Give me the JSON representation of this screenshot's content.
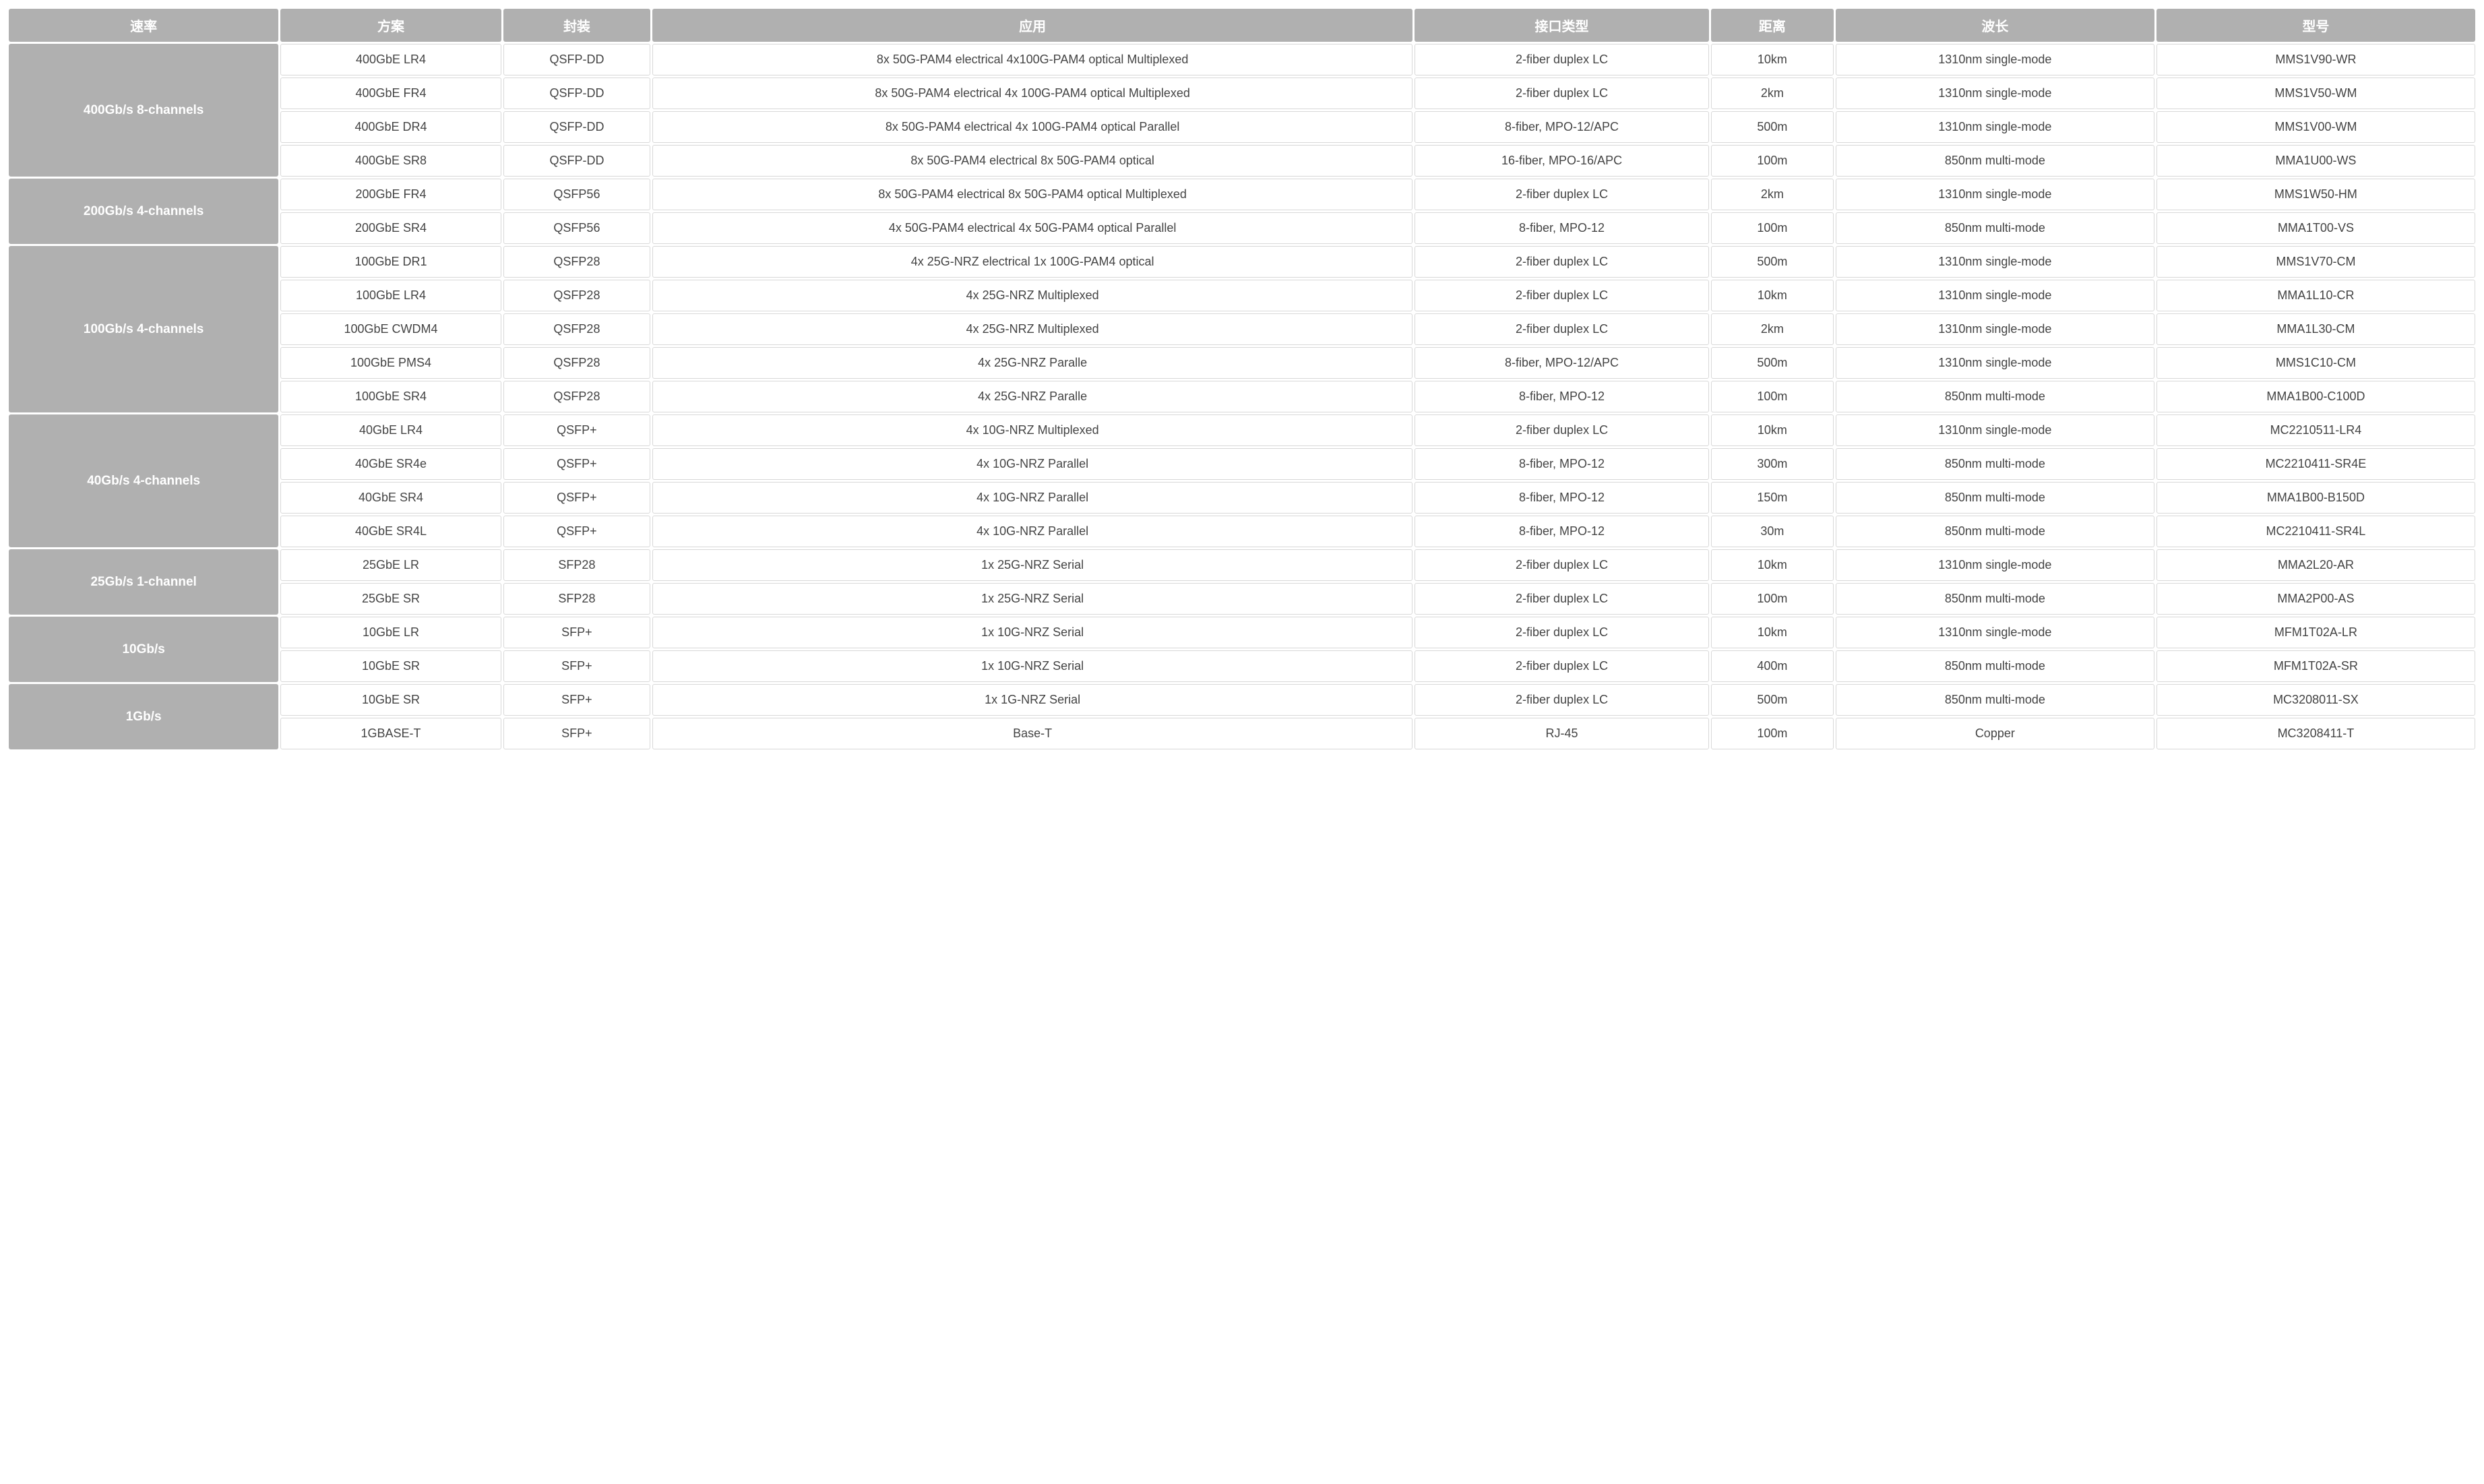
{
  "columns": [
    "速率",
    "方案",
    "封装",
    "应用",
    "接口类型",
    "距离",
    "波长",
    "型号"
  ],
  "groups": [
    {
      "rate": "400Gb/s 8-channels",
      "rows": [
        {
          "scheme": "400GbE LR4",
          "pkg": "QSFP-DD",
          "app": "8x 50G-PAM4 electrical 4x100G-PAM4 optical Multiplexed",
          "iface": "2-fiber duplex LC",
          "dist": "10km",
          "wave": "1310nm single-mode",
          "model": "MMS1V90-WR"
        },
        {
          "scheme": "400GbE FR4",
          "pkg": "QSFP-DD",
          "app": "8x 50G-PAM4 electrical 4x 100G-PAM4 optical Multiplexed",
          "iface": "2-fiber duplex LC",
          "dist": "2km",
          "wave": "1310nm single-mode",
          "model": "MMS1V50-WM"
        },
        {
          "scheme": "400GbE DR4",
          "pkg": "QSFP-DD",
          "app": "8x 50G-PAM4 electrical 4x 100G-PAM4 optical Parallel",
          "iface": "8-fiber, MPO-12/APC",
          "dist": "500m",
          "wave": "1310nm single-mode",
          "model": "MMS1V00-WM"
        },
        {
          "scheme": "400GbE SR8",
          "pkg": "QSFP-DD",
          "app": "8x 50G-PAM4 electrical 8x 50G-PAM4 optical",
          "iface": "16-fiber, MPO-16/APC",
          "dist": "100m",
          "wave": "850nm multi-mode",
          "model": "MMA1U00-WS"
        }
      ]
    },
    {
      "rate": "200Gb/s 4-channels",
      "rows": [
        {
          "scheme": "200GbE FR4",
          "pkg": "QSFP56",
          "app": "8x 50G-PAM4 electrical 8x 50G-PAM4 optical Multiplexed",
          "iface": "2-fiber duplex LC",
          "dist": "2km",
          "wave": "1310nm single-mode",
          "model": "MMS1W50-HM"
        },
        {
          "scheme": "200GbE SR4",
          "pkg": "QSFP56",
          "app": "4x 50G-PAM4 electrical 4x 50G-PAM4 optical Parallel",
          "iface": "8-fiber, MPO-12",
          "dist": "100m",
          "wave": "850nm multi-mode",
          "model": "MMA1T00-VS"
        }
      ]
    },
    {
      "rate": "100Gb/s 4-channels",
      "rows": [
        {
          "scheme": "100GbE DR1",
          "pkg": "QSFP28",
          "app": "4x 25G-NRZ electrical 1x 100G-PAM4 optical",
          "iface": "2-fiber duplex LC",
          "dist": "500m",
          "wave": "1310nm single-mode",
          "model": "MMS1V70-CM"
        },
        {
          "scheme": "100GbE LR4",
          "pkg": "QSFP28",
          "app": "4x 25G-NRZ Multiplexed",
          "iface": "2-fiber duplex LC",
          "dist": "10km",
          "wave": "1310nm single-mode",
          "model": "MMA1L10-CR"
        },
        {
          "scheme": "100GbE CWDM4",
          "pkg": "QSFP28",
          "app": "4x 25G-NRZ Multiplexed",
          "iface": "2-fiber duplex LC",
          "dist": "2km",
          "wave": "1310nm single-mode",
          "model": "MMA1L30-CM"
        },
        {
          "scheme": "100GbE PMS4",
          "pkg": "QSFP28",
          "app": "4x 25G-NRZ Paralle",
          "iface": "8-fiber, MPO-12/APC",
          "dist": "500m",
          "wave": "1310nm single-mode",
          "model": "MMS1C10-CM"
        },
        {
          "scheme": "100GbE SR4",
          "pkg": "QSFP28",
          "app": "4x 25G-NRZ Paralle",
          "iface": "8-fiber, MPO-12",
          "dist": "100m",
          "wave": "850nm multi-mode",
          "model": "MMA1B00-C100D"
        }
      ]
    },
    {
      "rate": "40Gb/s 4-channels",
      "rows": [
        {
          "scheme": "40GbE LR4",
          "pkg": "QSFP+",
          "app": "4x 10G-NRZ Multiplexed",
          "iface": "2-fiber duplex LC",
          "dist": "10km",
          "wave": "1310nm single-mode",
          "model": "MC2210511-LR4"
        },
        {
          "scheme": "40GbE SR4e",
          "pkg": "QSFP+",
          "app": "4x 10G-NRZ Parallel",
          "iface": "8-fiber, MPO-12",
          "dist": "300m",
          "wave": "850nm multi-mode",
          "model": "MC2210411-SR4E"
        },
        {
          "scheme": "40GbE SR4",
          "pkg": "QSFP+",
          "app": "4x 10G-NRZ Parallel",
          "iface": "8-fiber, MPO-12",
          "dist": "150m",
          "wave": "850nm multi-mode",
          "model": "MMA1B00-B150D"
        },
        {
          "scheme": "40GbE SR4L",
          "pkg": "QSFP+",
          "app": "4x 10G-NRZ Parallel",
          "iface": "8-fiber, MPO-12",
          "dist": "30m",
          "wave": "850nm multi-mode",
          "model": "MC2210411-SR4L"
        }
      ]
    },
    {
      "rate": "25Gb/s 1-channel",
      "rows": [
        {
          "scheme": "25GbE LR",
          "pkg": "SFP28",
          "app": "1x 25G-NRZ Serial",
          "iface": "2-fiber duplex LC",
          "dist": "10km",
          "wave": "1310nm single-mode",
          "model": "MMA2L20-AR"
        },
        {
          "scheme": "25GbE SR",
          "pkg": "SFP28",
          "app": "1x 25G-NRZ Serial",
          "iface": "2-fiber duplex LC",
          "dist": "100m",
          "wave": "850nm multi-mode",
          "model": "MMA2P00-AS"
        }
      ]
    },
    {
      "rate": "10Gb/s",
      "rows": [
        {
          "scheme": "10GbE LR",
          "pkg": "SFP+",
          "app": "1x 10G-NRZ Serial",
          "iface": "2-fiber duplex LC",
          "dist": "10km",
          "wave": "1310nm single-mode",
          "model": "MFM1T02A-LR"
        },
        {
          "scheme": "10GbE SR",
          "pkg": "SFP+",
          "app": "1x 10G-NRZ Serial",
          "iface": "2-fiber duplex LC",
          "dist": "400m",
          "wave": "850nm multi-mode",
          "model": "MFM1T02A-SR"
        }
      ]
    },
    {
      "rate": "1Gb/s",
      "rows": [
        {
          "scheme": "10GbE SR",
          "pkg": "SFP+",
          "app": "1x 1G-NRZ Serial",
          "iface": "2-fiber duplex LC",
          "dist": "500m",
          "wave": "850nm multi-mode",
          "model": "MC3208011-SX"
        },
        {
          "scheme": "1GBASE-T",
          "pkg": "SFP+",
          "app": "Base-T",
          "iface": "RJ-45",
          "dist": "100m",
          "wave": "Copper",
          "model": "MC3208411-T"
        }
      ]
    }
  ],
  "style": {
    "header_bg": "#b0b0b0",
    "header_fg": "#ffffff",
    "cell_bg": "#ffffff",
    "cell_fg": "#444444",
    "cell_border": "#d8d8d8",
    "header_fontsize": 20,
    "cell_fontsize": 18,
    "border_spacing": 3
  }
}
